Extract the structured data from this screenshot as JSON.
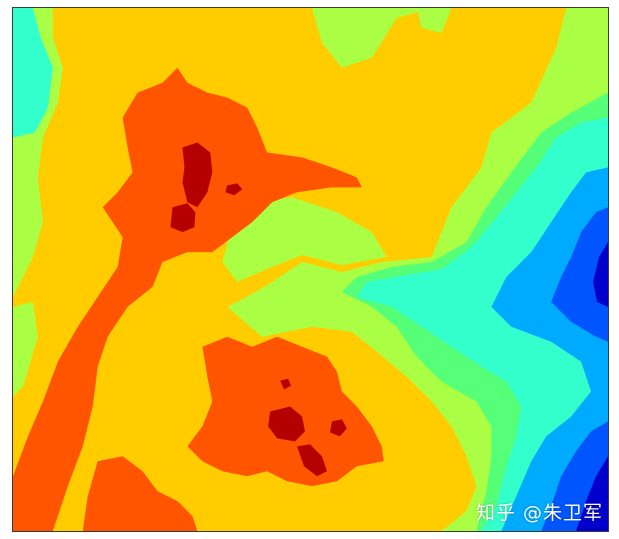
{
  "chart_data": {
    "type": "contour",
    "title": "",
    "xlabel": "",
    "ylabel": "",
    "colormap": "jet",
    "filled": true,
    "grid": false,
    "legend": "none",
    "levels": [
      {
        "name": "level-1",
        "color": "#0000cc"
      },
      {
        "name": "level-2",
        "color": "#0055ff"
      },
      {
        "name": "level-3",
        "color": "#00aaff"
      },
      {
        "name": "level-4",
        "color": "#33ffcc"
      },
      {
        "name": "level-5",
        "color": "#55ff77"
      },
      {
        "name": "level-6",
        "color": "#aaff44"
      },
      {
        "name": "level-7",
        "color": "#ffcc00"
      },
      {
        "name": "level-8",
        "color": "#ff5500"
      },
      {
        "name": "level-9",
        "color": "#b50000"
      }
    ]
  },
  "watermark": {
    "text": "知乎 @朱卫军"
  }
}
